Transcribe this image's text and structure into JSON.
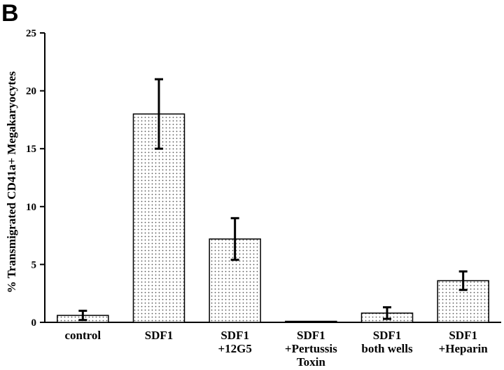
{
  "panel_label": "B",
  "chart_data": {
    "type": "bar",
    "categories": [
      [
        "control"
      ],
      [
        "SDF1"
      ],
      [
        "SDF1",
        "+12G5"
      ],
      [
        "SDF1",
        "+Pertussis",
        "Toxin"
      ],
      [
        "SDF1",
        "both wells"
      ],
      [
        "SDF1",
        "+Heparin"
      ]
    ],
    "values": [
      0.6,
      18.0,
      7.2,
      0.05,
      0.8,
      3.6
    ],
    "error": [
      0.4,
      3.0,
      1.8,
      0,
      0.5,
      0.8
    ],
    "ylabel": "% Transmigrated CD41a+ Megakaryocytes",
    "xlabel": "",
    "ylim": [
      0,
      25
    ],
    "yticks": [
      0,
      5,
      10,
      15,
      20,
      25
    ],
    "bar_fill": "dotted light gray",
    "grid": false
  }
}
